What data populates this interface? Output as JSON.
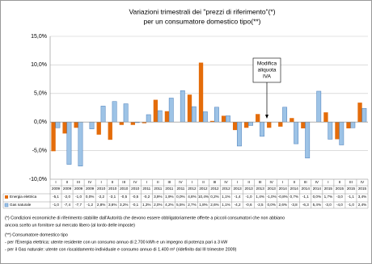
{
  "chart_data": {
    "type": "bar",
    "title": "Variazioni trimestrali dei \"prezzi di riferimento\"(*)",
    "subtitle": "per un consumatore domestico tipo(**)",
    "categories": [
      "I",
      "II",
      "III",
      "IV",
      "I",
      "II",
      "III",
      "IV",
      "I",
      "II",
      "III",
      "IV",
      "I",
      "II",
      "III",
      "IV",
      "I",
      "II",
      "III",
      "IV",
      "I",
      "II",
      "III",
      "IV",
      "I",
      "II",
      "III",
      "IV"
    ],
    "years": [
      "2009",
      "2009",
      "2009",
      "2009",
      "2010",
      "2010",
      "2010",
      "2010",
      "2011",
      "2011",
      "2011",
      "2011",
      "2012",
      "2012",
      "2012",
      "2012",
      "2013",
      "2013",
      "2013",
      "2013",
      "2014",
      "2014",
      "2014",
      "2014",
      "2015",
      "2015",
      "2015",
      "2015"
    ],
    "series": [
      {
        "name": "Energia elettrica",
        "color": "#e46c0a",
        "values": [
          -5.1,
          -2.0,
          -1.0,
          0.0,
          -2.2,
          -3.1,
          -0.5,
          -0.5,
          -0.2,
          3.9,
          1.9,
          0.0,
          4.8,
          10.4,
          0.2,
          1.1,
          -1.4,
          -1.0,
          1.4,
          -1.0,
          -0.8,
          0.7,
          -1.1,
          0.0,
          1.7,
          -3.0,
          -1.1,
          3.4
        ],
        "value_labels": [
          "-5,1",
          "-2,0",
          "-1,0",
          "0,0%",
          "-2,2",
          "-3,1",
          "-0,5",
          "-0,5",
          "-0,2",
          "3,9%",
          "1,9%",
          "0,0%",
          "4,8%",
          "10,4%",
          "0,2%",
          "1,1%",
          "-1,4",
          "-1,0",
          "1,4%",
          "-1,0%",
          "-0,8%",
          "0,7%",
          "-1,1",
          "0,0%",
          "1,7%",
          "-3,0",
          "-1,1",
          "3,4%"
        ]
      },
      {
        "name": "Gas naturale",
        "color": "#9dc3e6",
        "values": [
          -1.0,
          -7.4,
          -7.7,
          -1.2,
          2.8,
          3.6,
          3.2,
          -0.1,
          1.3,
          2.0,
          4.2,
          5.5,
          2.7,
          1.8,
          2.6,
          1.1,
          -4.2,
          -0.6,
          -2.5,
          0.0,
          2.6,
          -3.8,
          -6.3,
          5.4,
          -3.0,
          -4.0,
          -1.0,
          2.4
        ],
        "value_labels": [
          "-1,0",
          "-7,4",
          "-7,7",
          "-1,2",
          "2,8%",
          "3,6%",
          "3,2%",
          "-0,1",
          "1,3%",
          "2,0%",
          "4,2%",
          "5,5%",
          "2,7%",
          "1,8%",
          "2,6%",
          "1,1%",
          "-4,2",
          "-0,6",
          "-2,5",
          "0,0%",
          "2,6%",
          "-3,8",
          "-6,3",
          "5,4%",
          "-3,0",
          "-4,0",
          "-1,0",
          "2,4%"
        ]
      }
    ],
    "ylim": [
      -10,
      15
    ],
    "yticks": [
      {
        "value": -10,
        "label": "-10,0%"
      },
      {
        "value": -5,
        "label": "-5,0%"
      },
      {
        "value": 0,
        "label": "0,0%"
      },
      {
        "value": 5,
        "label": "5,0%"
      },
      {
        "value": 10,
        "label": "10,0%"
      },
      {
        "value": 15,
        "label": "15,0%"
      }
    ],
    "grid": true,
    "annotation": [
      "Modifica",
      "aliquota",
      "IVA"
    ],
    "footnotes": [
      "(*) Condizioni economiche di riferimento stabilite dall'Autorità che devono essere obbligatoriamente offerte a piccoli consumatori che non abbiano",
      "ancora scelto un fornitore sul mercato libero (al lordo delle imposte)",
      "(**) Consumatore domestico tipo",
      "- per l'Energia elettrica: utente residente con un consumo annuo di 2.700 kWh e un impegno di potenza pari a 3 kW",
      "- per il Gas naturale: utente con riscaldamento individuale e consumo annuo di 1.400 m³ (ridefinito dal III trimestre 2009)"
    ]
  }
}
